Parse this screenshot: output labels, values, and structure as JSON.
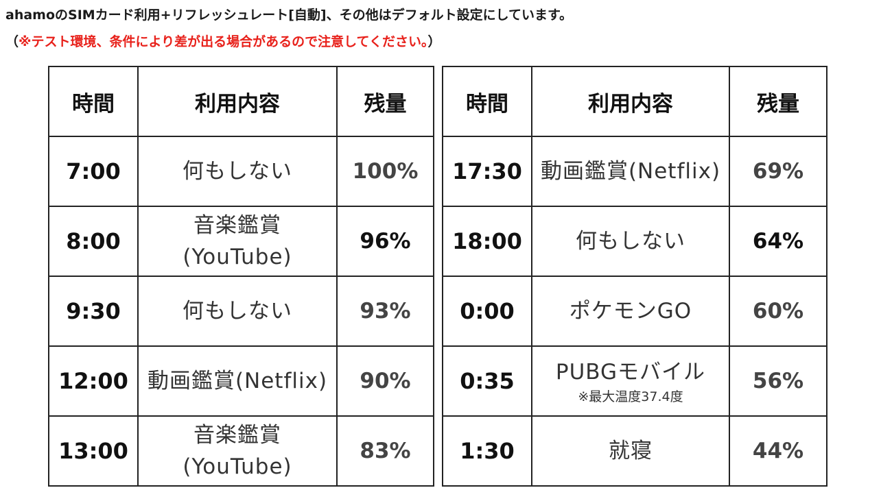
{
  "heading": "ahamoのSIMカード利用+リフレッシュレート[自動]、その他はデフォルト設定にしています。",
  "note": {
    "open": "（",
    "text": "※テスト環境、条件により差が出る場合があるので注意してください。",
    "close": "）"
  },
  "columns": {
    "time": "時間",
    "content": "利用内容",
    "remain": "残量"
  },
  "left_rows": [
    {
      "time": "7:00",
      "content": "何もしない",
      "sub": "",
      "remain": "100%"
    },
    {
      "time": "8:00",
      "content": "音楽鑑賞",
      "sub": "(YouTube)",
      "remain": "96%"
    },
    {
      "time": "9:30",
      "content": "何もしない",
      "sub": "",
      "remain": "93%"
    },
    {
      "time": "12:00",
      "content": "動画鑑賞(Netflix)",
      "sub": "",
      "remain": "90%"
    },
    {
      "time": "13:00",
      "content": "音楽鑑賞",
      "sub": "(YouTube)",
      "remain": "83%"
    }
  ],
  "right_rows": [
    {
      "time": "17:30",
      "content": "動画鑑賞(Netflix)",
      "sub": "",
      "remain": "69%"
    },
    {
      "time": "18:00",
      "content": "何もしない",
      "sub": "",
      "remain": "64%"
    },
    {
      "time": "0:00",
      "content": "ポケモンGO",
      "sub": "",
      "remain": "60%"
    },
    {
      "time": "0:35",
      "content": "PUBGモバイル",
      "sub": "※最大温度37.4度",
      "remain": "56%"
    },
    {
      "time": "1:30",
      "content": "就寝",
      "sub": "",
      "remain": "44%"
    }
  ]
}
